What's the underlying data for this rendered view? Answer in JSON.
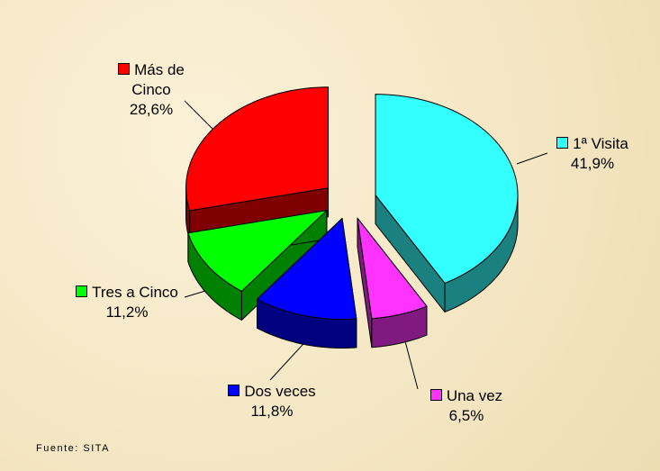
{
  "chart_data": {
    "type": "pie3d",
    "categories": [
      "1ª Visita",
      "Una vez",
      "Dos veces",
      "Tres a Cinco",
      "Más de Cinco"
    ],
    "values": [
      41.9,
      6.5,
      11.8,
      11.2,
      28.6
    ],
    "value_labels": [
      "41,9%",
      "6,5%",
      "11,8%",
      "11,2%",
      "28,6%"
    ],
    "colors": [
      "#33ffff",
      "#ff33ff",
      "#0000ff",
      "#00ff00",
      "#ff0000"
    ],
    "source": "Fuente: SITA"
  }
}
